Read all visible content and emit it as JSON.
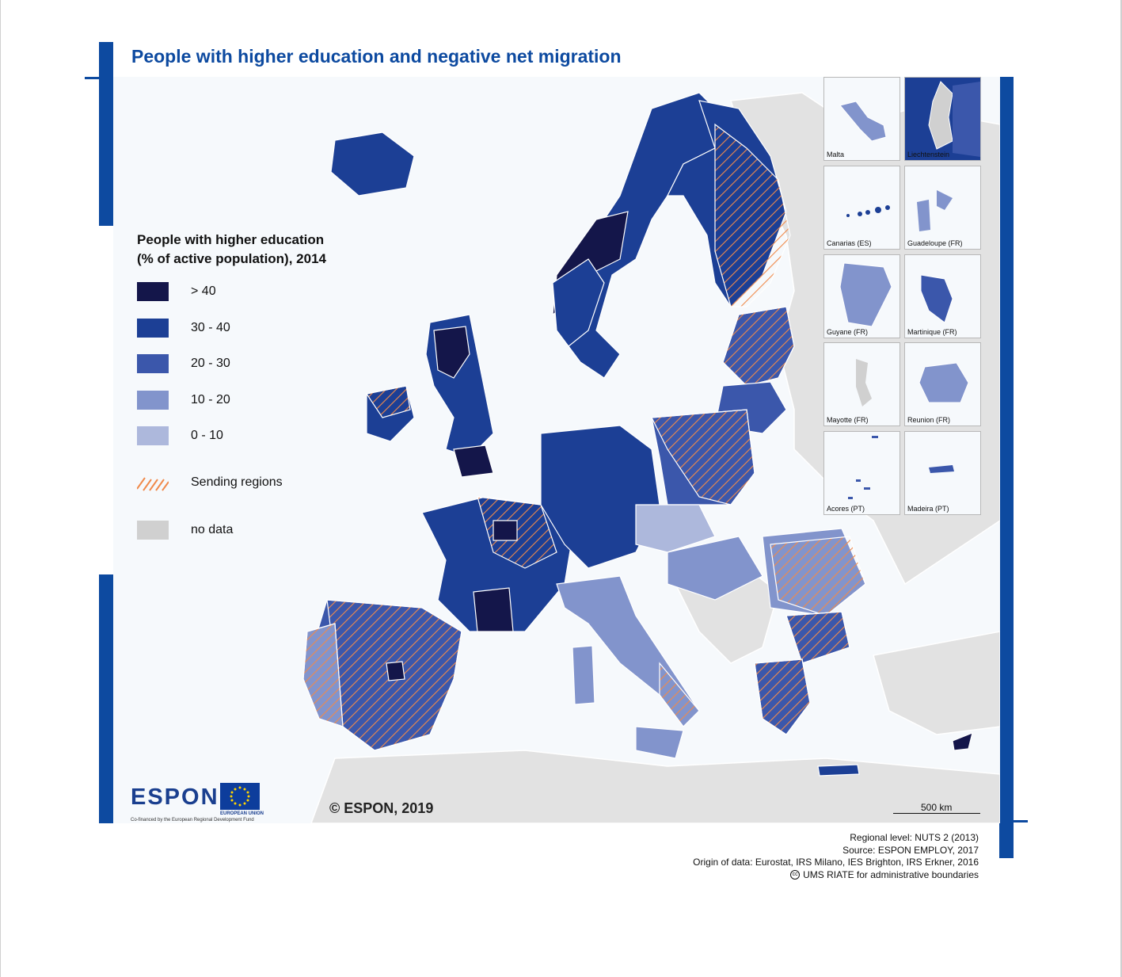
{
  "title": "People with higher education and negative net migration",
  "legend": {
    "title_line1": "People with higher education",
    "title_line2": "(% of active population), 2014",
    "items": [
      {
        "label": "> 40",
        "color": "#14164a"
      },
      {
        "label": "30 - 40",
        "color": "#1c3f95"
      },
      {
        "label": "20 - 30",
        "color": "#3b57ab"
      },
      {
        "label": "10 - 20",
        "color": "#8294cc"
      },
      {
        "label": "0 - 10",
        "color": "#adb8dc"
      },
      {
        "label": "Sending regions",
        "color": "#f08a4b"
      },
      {
        "label": "no data",
        "color": "#d0d0d0"
      }
    ]
  },
  "insets": [
    {
      "label": "Malta"
    },
    {
      "label": "Liechtenstein"
    },
    {
      "label": "Canarias (ES)"
    },
    {
      "label": "Guadeloupe (FR)"
    },
    {
      "label": "Guyane (FR)"
    },
    {
      "label": "Martinique (FR)"
    },
    {
      "label": "Mayotte (FR)"
    },
    {
      "label": "Reunion (FR)"
    },
    {
      "label": "Acores (PT)"
    },
    {
      "label": "Madeira (PT)"
    }
  ],
  "copyright": "© ESPON, 2019",
  "scale": "500 km",
  "logo": {
    "name": "ESPON",
    "subtitle": "Co-financed by the European Regional Development Fund",
    "eu_text": "EUROPEAN UNION"
  },
  "source": {
    "line1": "Regional level: NUTS 2 (2013)",
    "line2": "Source: ESPON EMPLOY, 2017",
    "line3": "Origin of data: Eurostat, IRS Milano, IES Brighton, IRS Erkner, 2016",
    "line4": "UMS RIATE for administrative boundaries"
  }
}
